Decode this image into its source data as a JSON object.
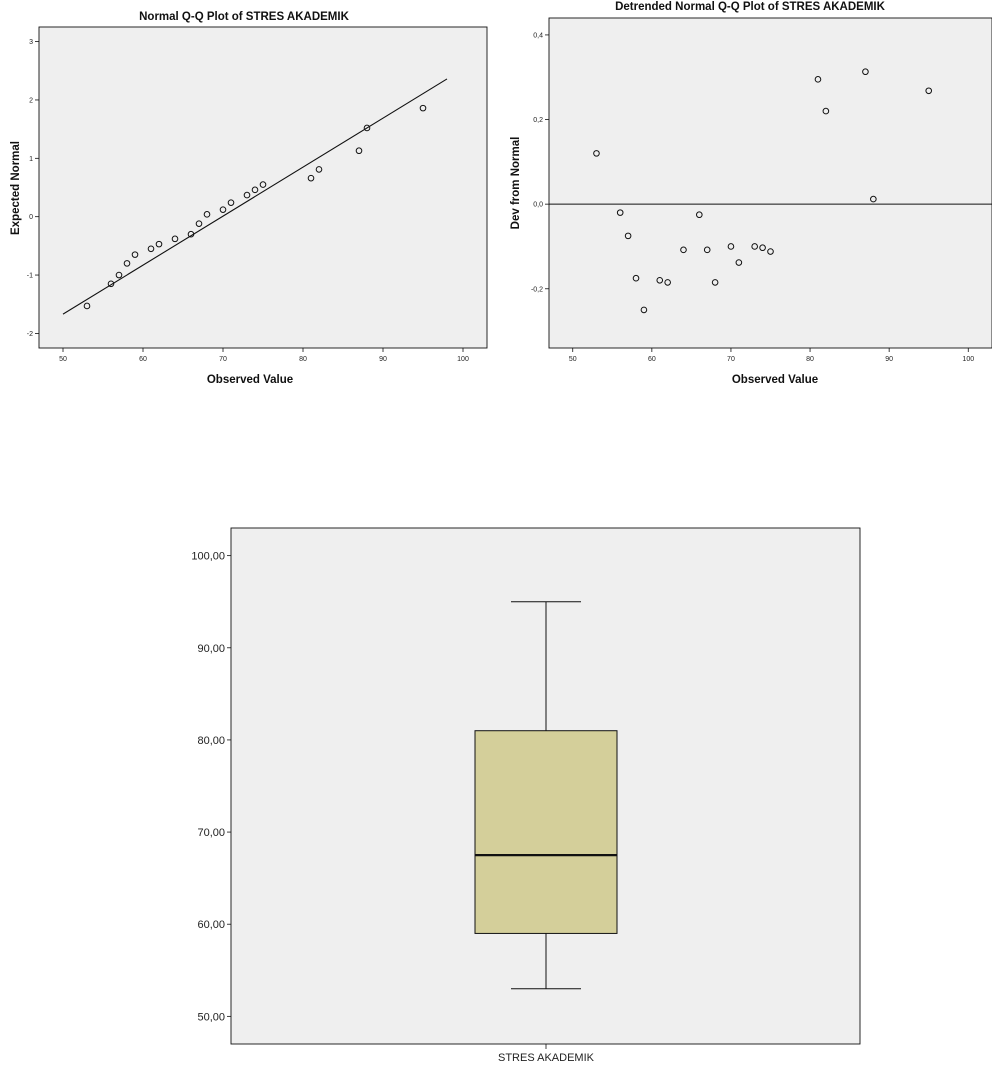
{
  "chart_data": [
    {
      "type": "scatter",
      "title": "Normal Q-Q Plot of STRES AKADEMIK",
      "xlabel": "Observed Value",
      "ylabel": "Expected Normal",
      "xlim": [
        47,
        103
      ],
      "ylim": [
        -2.25,
        3.25
      ],
      "xticks": [
        50,
        60,
        70,
        80,
        90,
        100
      ],
      "yticks": [
        -2,
        -1,
        0,
        1,
        2,
        3
      ],
      "xtick_labels": [
        "50",
        "60",
        "70",
        "80",
        "90",
        "100"
      ],
      "ytick_labels": [
        "-2",
        "-1",
        "0",
        "1",
        "2",
        "3"
      ],
      "reference_line": {
        "x": [
          50,
          98
        ],
        "y": [
          -1.67,
          2.36
        ]
      },
      "points": {
        "x": [
          53,
          56,
          57,
          58,
          59,
          61,
          62,
          64,
          66,
          67,
          68,
          70,
          71,
          73,
          74,
          75,
          81,
          82,
          87,
          88,
          95
        ],
        "y": [
          -1.53,
          -1.15,
          -1.0,
          -0.8,
          -0.65,
          -0.55,
          -0.47,
          -0.38,
          -0.3,
          -0.12,
          0.04,
          0.12,
          0.24,
          0.37,
          0.46,
          0.55,
          0.66,
          0.81,
          1.13,
          1.52,
          1.86
        ]
      },
      "grid": false,
      "plot_background": "#efefef"
    },
    {
      "type": "scatter",
      "title": "Detrended Normal Q-Q Plot of STRES AKADEMIK",
      "xlabel": "Observed Value",
      "ylabel": "Dev from Normal",
      "xlim": [
        47,
        103
      ],
      "ylim": [
        -0.34,
        0.44
      ],
      "xticks": [
        50,
        60,
        70,
        80,
        90,
        100
      ],
      "yticks": [
        -0.2,
        0.0,
        0.2,
        0.4
      ],
      "xtick_labels": [
        "50",
        "60",
        "70",
        "80",
        "90",
        "100"
      ],
      "ytick_labels": [
        "-0,2",
        "0,0",
        "0,2",
        "0,4"
      ],
      "reference_line_y": 0,
      "points": {
        "x": [
          53,
          56,
          57,
          58,
          59,
          61,
          62,
          64,
          66,
          67,
          68,
          70,
          71,
          73,
          74,
          75,
          81,
          82,
          87,
          88,
          95
        ],
        "y": [
          0.12,
          -0.02,
          -0.075,
          -0.175,
          -0.25,
          -0.18,
          -0.185,
          -0.108,
          -0.025,
          -0.108,
          -0.185,
          -0.1,
          -0.138,
          -0.1,
          -0.103,
          -0.112,
          0.295,
          0.22,
          0.313,
          0.012,
          0.268
        ]
      },
      "grid": false,
      "plot_background": "#efefef"
    },
    {
      "type": "box",
      "categories": [
        "STRES AKADEMIK"
      ],
      "ylim": [
        47,
        103
      ],
      "yticks": [
        50,
        60,
        70,
        80,
        90,
        100
      ],
      "ytick_labels": [
        "50,00",
        "60,00",
        "70,00",
        "80,00",
        "90,00",
        "100,00"
      ],
      "box": {
        "min": 53,
        "q1": 59,
        "median": 67.5,
        "q3": 81,
        "max": 95
      },
      "box_color": "#d4cf9a",
      "grid": false,
      "plot_background": "#efefef"
    }
  ]
}
